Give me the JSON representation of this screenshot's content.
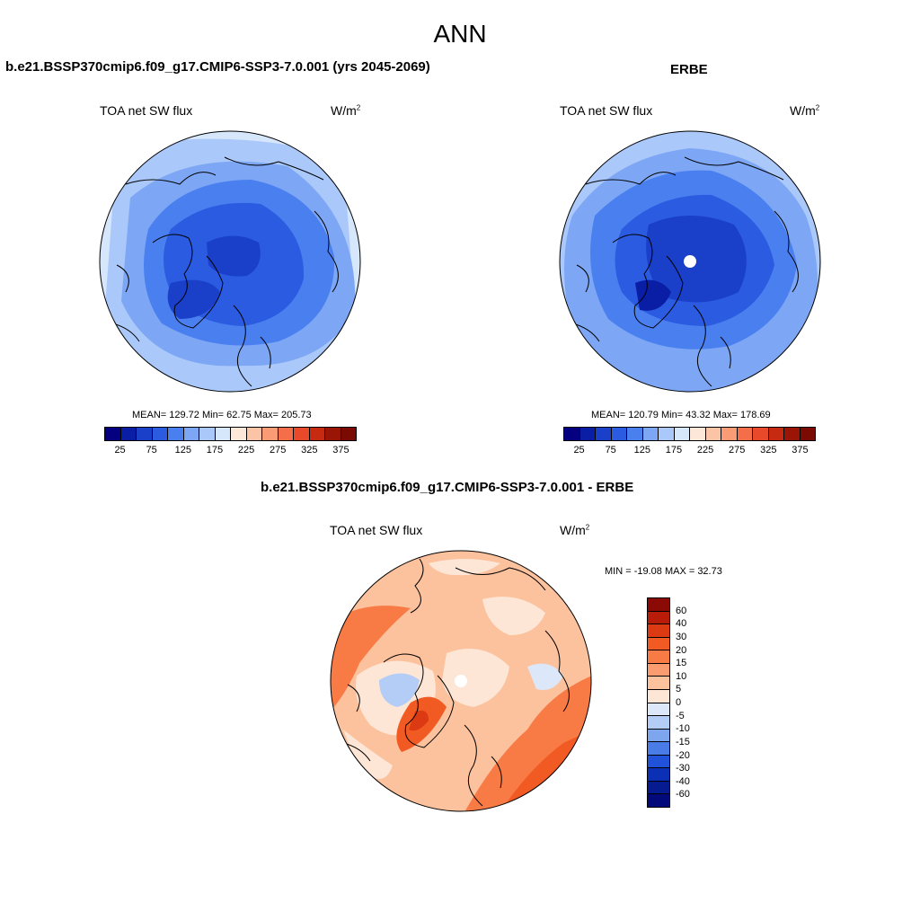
{
  "page": {
    "title": "ANN"
  },
  "panels": {
    "model": {
      "title": "b.e21.BSSP370cmip6.f09_g17.CMIP6-SSP3-7.0.001 (yrs 2045-2069)",
      "variable": "TOA net SW flux",
      "units": "W/m",
      "units_sup": "2",
      "stats": "MEAN= 129.72  Min=  62.75  Max= 205.73"
    },
    "obs": {
      "title": "ERBE",
      "variable": "TOA net SW flux",
      "units": "W/m",
      "units_sup": "2",
      "stats": "MEAN= 120.79  Min=  43.32  Max= 178.69"
    },
    "diff": {
      "title": "b.e21.BSSP370cmip6.f09_g17.CMIP6-SSP3-7.0.001 - ERBE",
      "variable": "TOA net SW flux",
      "units": "W/m",
      "units_sup": "2",
      "stats": "MIN = -19.08 MAX =  32.73"
    }
  },
  "colorbar_abs": {
    "ticks": [
      "25",
      "75",
      "125",
      "175",
      "225",
      "275",
      "325",
      "375"
    ],
    "colors": [
      "#05007f",
      "#0a1da5",
      "#1a3fc9",
      "#2a5be0",
      "#4a7ff0",
      "#7da7f5",
      "#aac8fa",
      "#d6e6fb",
      "#fde7d8",
      "#fcc4a6",
      "#f99b74",
      "#f46f49",
      "#e8492a",
      "#c62b12",
      "#9a1505",
      "#7a0a02"
    ]
  },
  "colorbar_diff": {
    "ticks": [
      "60",
      "40",
      "30",
      "20",
      "15",
      "10",
      "5",
      "0",
      "-5",
      "-10",
      "-15",
      "-20",
      "-30",
      "-40",
      "-60"
    ],
    "colors": [
      "#8b0a05",
      "#b91d0a",
      "#dc3a12",
      "#f25a23",
      "#f87a45",
      "#fa9c70",
      "#fcc19d",
      "#fde6d6",
      "#dce8fa",
      "#b4cdf6",
      "#7ea6ef",
      "#4a7ce8",
      "#2053d9",
      "#0c30b5",
      "#061b90",
      "#02097a"
    ]
  }
}
